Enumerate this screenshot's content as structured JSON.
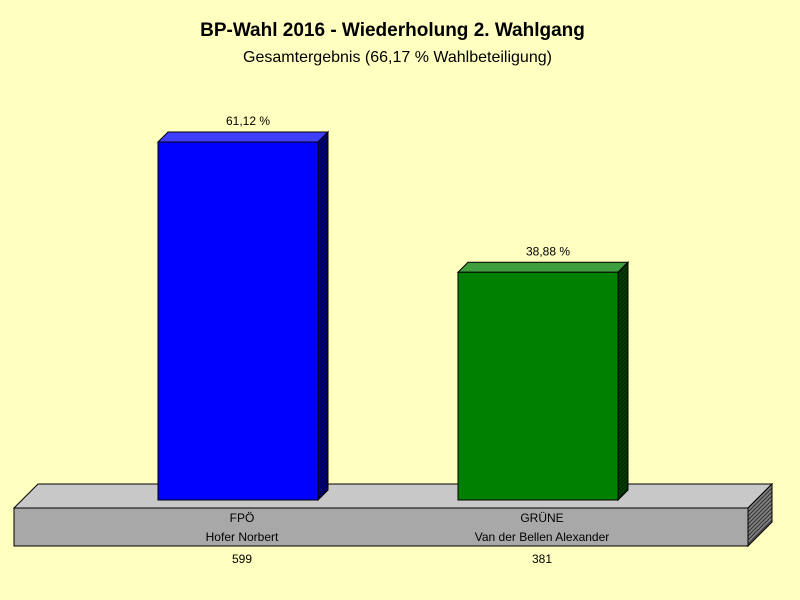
{
  "chart_data": {
    "type": "bar",
    "title": "BP-Wahl 2016 - Wiederholung 2. Wahlgang",
    "subtitle": "Gesamtergebnis (66,17 % Wahlbeteiligung)",
    "categories": [
      "FPÖ",
      "GRÜNE"
    ],
    "candidates": [
      "Hofer Norbert",
      "Van der Bellen Alexander"
    ],
    "votes": [
      "599",
      "381"
    ],
    "values": [
      61.12,
      38.88
    ],
    "value_labels": [
      "61,12 %",
      "38,88 %"
    ],
    "ylim": [
      0,
      61.12
    ],
    "grid": false,
    "legend": "none",
    "colors": {
      "bar_fronts": [
        "#0000ff",
        "#008000"
      ],
      "bar_tops": [
        "#3f3fff",
        "#3f9f3f"
      ],
      "bar_sides": [
        "#00007f",
        "#004000"
      ],
      "platform_top": "#c8c8c8",
      "platform_front": "#a8a8a8",
      "platform_side": "#808080",
      "background": "#ffffc0"
    }
  }
}
